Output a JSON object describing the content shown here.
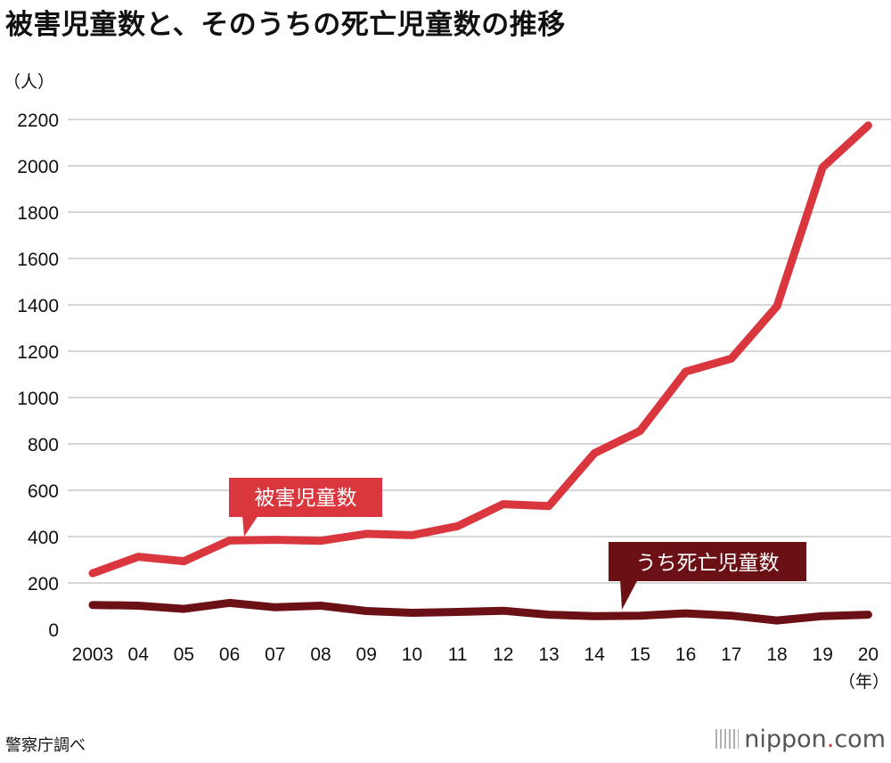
{
  "title": "被害児童数と、そのうちの死亡児童数の推移",
  "source": "警察庁調べ",
  "brand": {
    "name": "nippon",
    "dot": ".",
    "suffix": "com"
  },
  "chart_data": {
    "type": "line",
    "title": "被害児童数と、そのうちの死亡児童数の推移",
    "ylabel": "（人）",
    "xlabel": "（年）",
    "ylim": [
      0,
      2200
    ],
    "yticks": [
      0,
      200,
      400,
      600,
      800,
      1000,
      1200,
      1400,
      1600,
      1800,
      2000,
      2200
    ],
    "grid": true,
    "categories": [
      "2003",
      "04",
      "05",
      "06",
      "07",
      "08",
      "09",
      "10",
      "11",
      "12",
      "13",
      "14",
      "15",
      "16",
      "17",
      "18",
      "19",
      "20"
    ],
    "series": [
      {
        "name": "被害児童数",
        "color": "#d9363e",
        "values": [
          242,
          313,
          294,
          383,
          386,
          382,
          412,
          406,
          445,
          540,
          532,
          760,
          856,
          1112,
          1168,
          1394,
          1993,
          2174
        ]
      },
      {
        "name": "うち死亡児童数",
        "color": "#6b1115",
        "values": [
          105,
          102,
          88,
          114,
          95,
          102,
          79,
          71,
          75,
          80,
          63,
          57,
          59,
          69,
          59,
          38,
          57,
          63
        ]
      }
    ]
  }
}
